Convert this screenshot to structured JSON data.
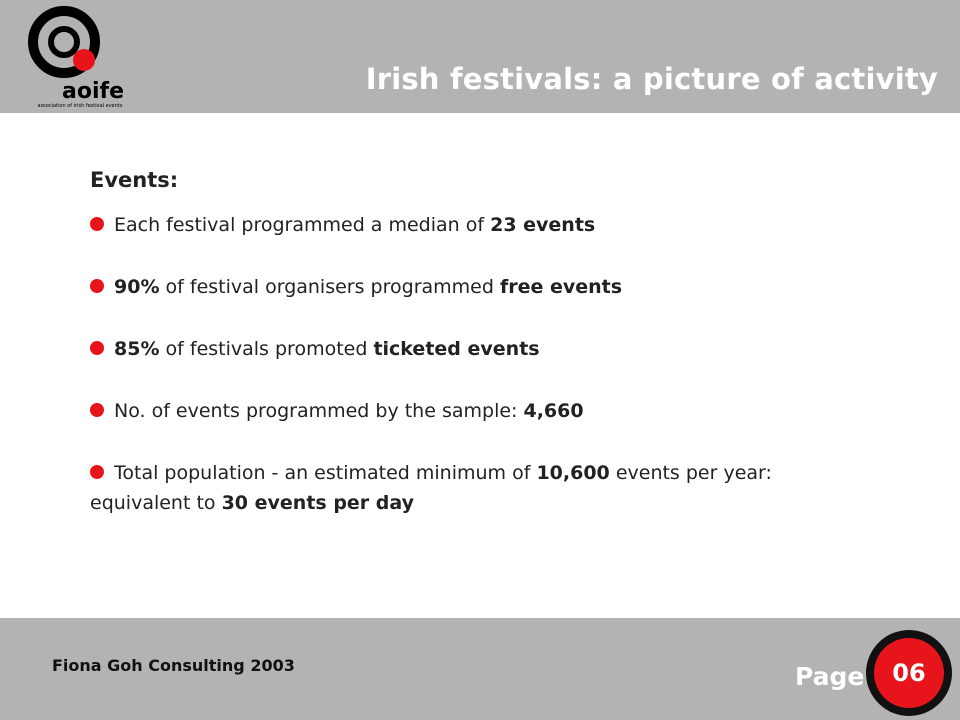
{
  "header": {
    "title": "Irish festivals: a picture of activity",
    "logo_text": "aoife",
    "logo_subtitle": "association of irish festival events"
  },
  "content": {
    "heading": "Events:",
    "bullets": [
      {
        "pre": "Each festival programmed a median of ",
        "bold": "23 events",
        "post": ""
      },
      {
        "pre": "",
        "bold": "90%",
        "post": " of festival organisers programmed ",
        "bold2": "free events"
      },
      {
        "pre": "",
        "bold": "85%",
        "post": " of festivals promoted ",
        "bold2": "ticketed events"
      },
      {
        "pre": "No. of events programmed by the sample: ",
        "bold": "4,660",
        "post": ""
      },
      {
        "pre": "Total population - an estimated minimum of ",
        "bold": "10,600",
        "post": " events per year: equivalent to ",
        "bold2": "30 events per day"
      }
    ]
  },
  "footer": {
    "credit": "Fiona Goh Consulting 2003",
    "page_label": "Page",
    "page_number": "06"
  },
  "colors": {
    "band": "#b3b3b3",
    "accent_red": "#e8141b"
  }
}
